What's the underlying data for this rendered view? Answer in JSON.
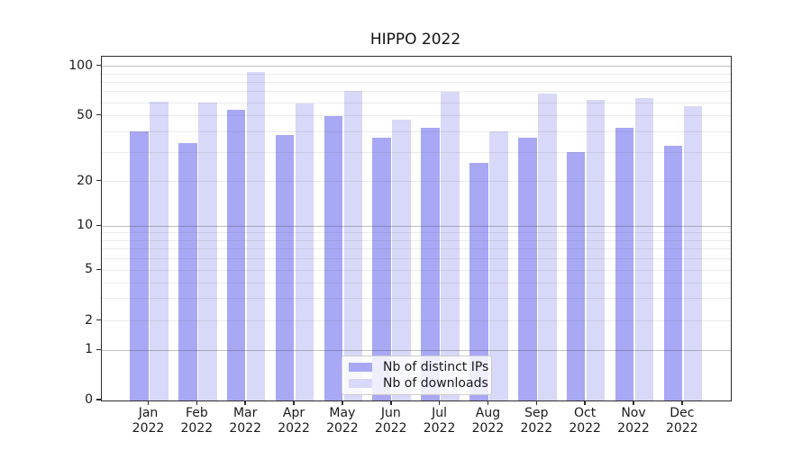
{
  "chart_data": {
    "type": "bar",
    "title": "HIPPO 2022",
    "xlabel": "",
    "ylabel": "",
    "yscale": "symlog-like (0 baseline with log-spaced labeled ticks)",
    "categories": [
      "Jan",
      "Feb",
      "Mar",
      "Apr",
      "May",
      "Jun",
      "Jul",
      "Aug",
      "Sep",
      "Oct",
      "Nov",
      "Dec"
    ],
    "category_year": "2022",
    "series": [
      {
        "name": "Nb of distinct IPs",
        "color": "#a8a8f5",
        "values": [
          40,
          34,
          54,
          38,
          50,
          37,
          42,
          26,
          37,
          30,
          42,
          33
        ]
      },
      {
        "name": "Nb of downloads",
        "color": "#d8d8f8",
        "values": [
          61,
          60,
          92,
          59,
          71,
          47,
          70,
          40,
          68,
          62,
          64,
          57
        ]
      }
    ],
    "y_tick_values": [
      100,
      50,
      20,
      10,
      5,
      2,
      1,
      0
    ],
    "y_tick_labels": [
      "100",
      "50",
      "20",
      "10",
      "5",
      "2",
      "1",
      "0"
    ],
    "y_major_gridlines": [
      100,
      10,
      1
    ],
    "y_minor_gridlines": [
      90,
      80,
      70,
      60,
      50,
      40,
      30,
      20,
      9,
      8,
      7,
      6,
      5,
      4,
      3,
      2
    ],
    "ylim": [
      0,
      110
    ],
    "grid": "on",
    "legend_position": "lower center",
    "legend_entries": [
      "Nb of distinct IPs",
      "Nb of downloads"
    ]
  },
  "colors": {
    "bar_ips": "#a8a8f5",
    "bar_downloads": "#d8d8f8",
    "major_grid": "#b3b3b3",
    "minor_grid": "#e9e9e9",
    "spine": "#2b2b2b",
    "text": "#1a1a1a"
  }
}
